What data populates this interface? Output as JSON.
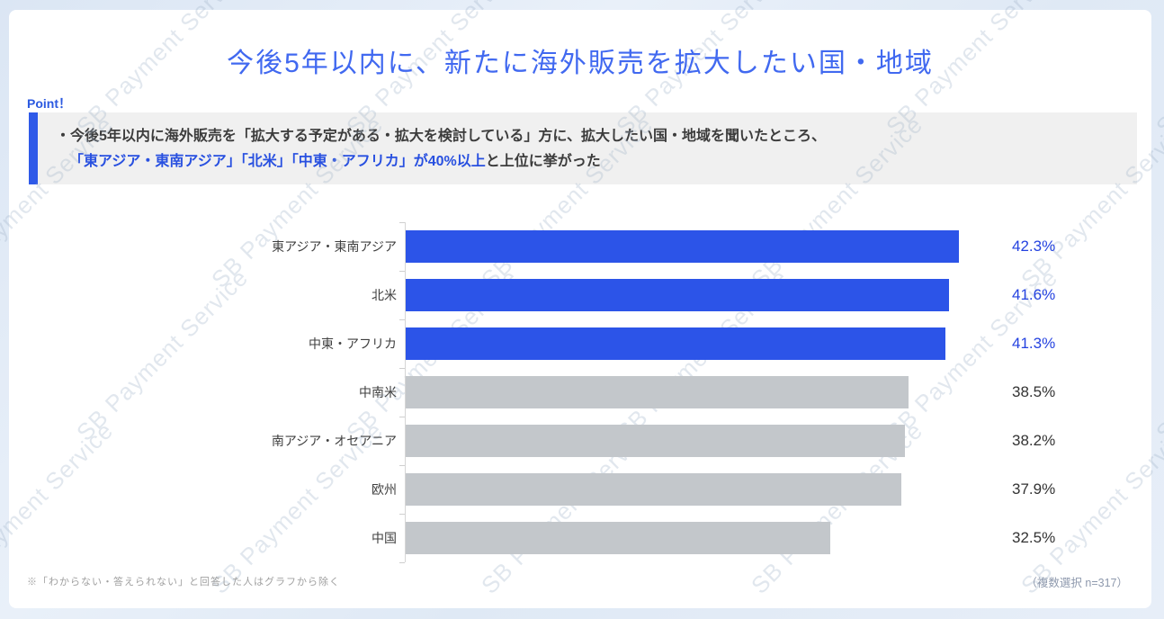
{
  "page": {
    "title": "今後5年以内に、新たに海外販売を拡大したい国・地域",
    "watermark_text": "SB Payment Service"
  },
  "point": {
    "label": "Point！",
    "line1": "・今後5年以内に海外販売を「拡大する予定がある・拡大を検討している」方に、拡大したい国・地域を聞いたところ、",
    "line2_highlight": "「東アジア・東南アジア」「北米」「中東・アフリカ」が40%以上",
    "line2_rest": "と上位に挙がった"
  },
  "chart_data": {
    "type": "bar",
    "orientation": "horizontal",
    "title": "今後5年以内に、新たに海外販売を拡大したい国・地域",
    "categories": [
      "東アジア・東南アジア",
      "北米",
      "中東・アフリカ",
      "中南米",
      "南アジア・オセアニア",
      "欧州",
      "中国"
    ],
    "values": [
      42.3,
      41.6,
      41.3,
      38.5,
      38.2,
      37.9,
      32.5
    ],
    "value_labels": [
      "42.3%",
      "41.6%",
      "41.3%",
      "38.5%",
      "38.2%",
      "37.9%",
      "32.5%"
    ],
    "highlighted": [
      true,
      true,
      true,
      false,
      false,
      false,
      false
    ],
    "xlim": [
      0,
      45.5
    ],
    "grid": false,
    "legend": "none",
    "colors": {
      "highlight_bar": "#2c54e8",
      "normal_bar": "#c3c7cb",
      "highlight_value_text": "#2442e0",
      "normal_value_text": "#333333",
      "accent": "#2f5ae8",
      "title_text": "#4169f0",
      "axis_line": "#d6d6d6"
    }
  },
  "footer": {
    "note_left": "※「わからない・答えられない」と回答した人はグラフから除く",
    "note_right": "（複数選択 n=317）"
  }
}
